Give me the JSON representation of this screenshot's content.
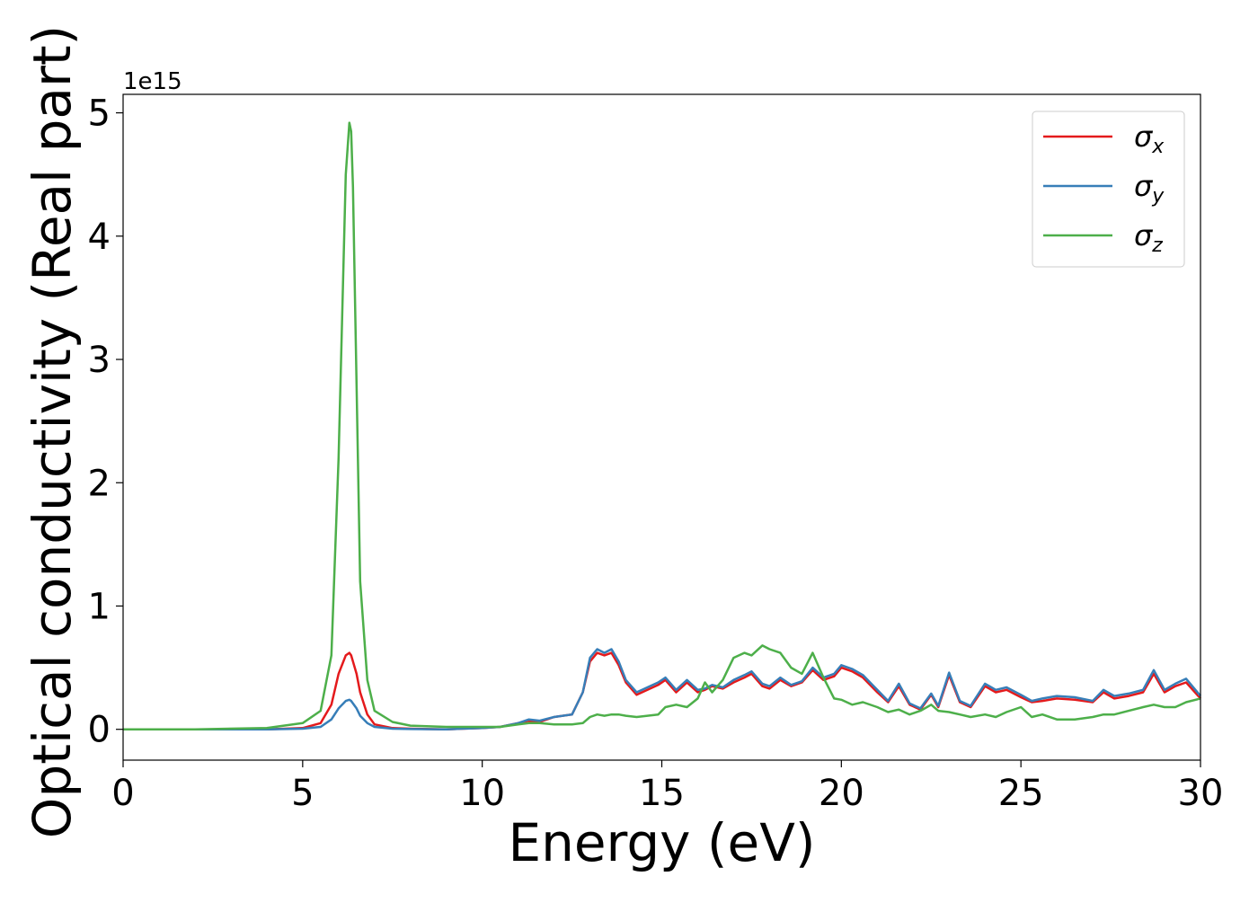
{
  "chart_data": {
    "type": "line",
    "xlabel": "Energy (eV)",
    "ylabel": "Optical conductivity (Real part)",
    "y_offset_text": "1e15",
    "xlim": [
      0,
      30
    ],
    "ylim": [
      -0.25,
      5.15
    ],
    "x_ticks": [
      0,
      5,
      10,
      15,
      20,
      25,
      30
    ],
    "x_tick_labels": [
      "0",
      "5",
      "10",
      "15",
      "20",
      "25",
      "30"
    ],
    "y_ticks": [
      0,
      1,
      2,
      3,
      4,
      5
    ],
    "y_tick_labels": [
      "0",
      "1",
      "2",
      "3",
      "4",
      "5"
    ],
    "grid": false,
    "legend_position": "top-right",
    "x": [
      0,
      2,
      4,
      5,
      5.5,
      5.8,
      6.0,
      6.2,
      6.3,
      6.35,
      6.4,
      6.5,
      6.6,
      6.8,
      7.0,
      7.5,
      8,
      9,
      10,
      10.5,
      11,
      11.3,
      11.6,
      12,
      12.5,
      12.8,
      13.0,
      13.2,
      13.4,
      13.6,
      13.8,
      14.0,
      14.3,
      14.6,
      14.9,
      15.1,
      15.4,
      15.7,
      16.0,
      16.2,
      16.4,
      16.7,
      17.0,
      17.3,
      17.5,
      17.8,
      18.0,
      18.3,
      18.6,
      18.9,
      19.2,
      19.5,
      19.8,
      20.0,
      20.3,
      20.6,
      21.0,
      21.3,
      21.6,
      21.9,
      22.2,
      22.5,
      22.7,
      23.0,
      23.3,
      23.6,
      24.0,
      24.3,
      24.6,
      25.0,
      25.3,
      25.6,
      26.0,
      26.5,
      27.0,
      27.3,
      27.6,
      28.0,
      28.4,
      28.7,
      29.0,
      29.3,
      29.6,
      30.0
    ],
    "series": [
      {
        "name": "σx",
        "label_base": "σ",
        "label_sub": "x",
        "color": "#e41a1c",
        "values": [
          0.0,
          0.0,
          0.0,
          0.01,
          0.05,
          0.2,
          0.45,
          0.6,
          0.62,
          0.6,
          0.55,
          0.45,
          0.3,
          0.12,
          0.04,
          0.01,
          0.005,
          0.0,
          0.01,
          0.02,
          0.05,
          0.07,
          0.06,
          0.1,
          0.12,
          0.3,
          0.55,
          0.62,
          0.6,
          0.62,
          0.52,
          0.38,
          0.28,
          0.32,
          0.36,
          0.4,
          0.3,
          0.38,
          0.3,
          0.32,
          0.35,
          0.33,
          0.38,
          0.42,
          0.45,
          0.35,
          0.33,
          0.4,
          0.35,
          0.38,
          0.48,
          0.4,
          0.43,
          0.5,
          0.47,
          0.42,
          0.3,
          0.22,
          0.35,
          0.2,
          0.16,
          0.28,
          0.18,
          0.44,
          0.22,
          0.18,
          0.35,
          0.3,
          0.32,
          0.26,
          0.22,
          0.23,
          0.25,
          0.24,
          0.22,
          0.3,
          0.25,
          0.27,
          0.3,
          0.45,
          0.3,
          0.35,
          0.38,
          0.25
        ]
      },
      {
        "name": "σy",
        "label_base": "σ",
        "label_sub": "y",
        "color": "#377eb8",
        "values": [
          0.0,
          0.0,
          0.0,
          0.005,
          0.02,
          0.08,
          0.17,
          0.23,
          0.24,
          0.23,
          0.21,
          0.17,
          0.11,
          0.05,
          0.02,
          0.005,
          0.002,
          0.0,
          0.01,
          0.02,
          0.05,
          0.08,
          0.07,
          0.1,
          0.12,
          0.3,
          0.58,
          0.65,
          0.62,
          0.65,
          0.55,
          0.4,
          0.3,
          0.34,
          0.38,
          0.42,
          0.32,
          0.4,
          0.32,
          0.33,
          0.36,
          0.34,
          0.4,
          0.44,
          0.47,
          0.37,
          0.35,
          0.42,
          0.36,
          0.39,
          0.5,
          0.42,
          0.45,
          0.52,
          0.49,
          0.44,
          0.32,
          0.23,
          0.37,
          0.21,
          0.17,
          0.29,
          0.19,
          0.46,
          0.23,
          0.19,
          0.37,
          0.32,
          0.34,
          0.28,
          0.23,
          0.25,
          0.27,
          0.26,
          0.23,
          0.32,
          0.27,
          0.29,
          0.32,
          0.48,
          0.32,
          0.37,
          0.41,
          0.27
        ]
      },
      {
        "name": "σz",
        "label_base": "σ",
        "label_sub": "z",
        "color": "#4daf4a",
        "values": [
          0.0,
          0.0,
          0.01,
          0.05,
          0.15,
          0.6,
          2.2,
          4.5,
          4.92,
          4.85,
          4.4,
          2.8,
          1.2,
          0.4,
          0.15,
          0.06,
          0.03,
          0.02,
          0.02,
          0.02,
          0.04,
          0.05,
          0.05,
          0.04,
          0.04,
          0.05,
          0.1,
          0.12,
          0.11,
          0.12,
          0.12,
          0.11,
          0.1,
          0.11,
          0.12,
          0.18,
          0.2,
          0.18,
          0.25,
          0.38,
          0.3,
          0.4,
          0.58,
          0.62,
          0.6,
          0.68,
          0.65,
          0.62,
          0.5,
          0.45,
          0.62,
          0.42,
          0.25,
          0.24,
          0.2,
          0.22,
          0.18,
          0.14,
          0.16,
          0.12,
          0.15,
          0.2,
          0.15,
          0.14,
          0.12,
          0.1,
          0.12,
          0.1,
          0.14,
          0.18,
          0.1,
          0.12,
          0.08,
          0.08,
          0.1,
          0.12,
          0.12,
          0.15,
          0.18,
          0.2,
          0.18,
          0.18,
          0.22,
          0.25
        ]
      }
    ]
  }
}
